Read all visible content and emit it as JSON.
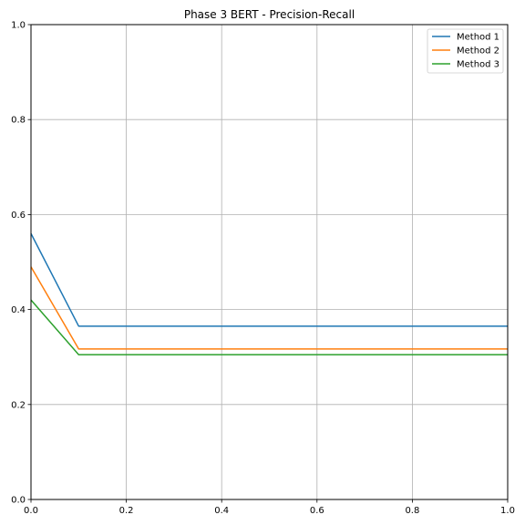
{
  "chart_data": {
    "type": "line",
    "title": "Phase 3 BERT - Precision-Recall",
    "xlabel": "",
    "ylabel": "",
    "xlim": [
      0,
      1
    ],
    "ylim": [
      0,
      1
    ],
    "grid": true,
    "legend_position": "top-right",
    "x_ticks": [
      "0.0",
      "0.2",
      "0.4",
      "0.6",
      "0.8",
      "1.0"
    ],
    "y_ticks": [
      "0.0",
      "0.2",
      "0.4",
      "0.6",
      "0.8",
      "1.0"
    ],
    "series": [
      {
        "name": "Method 1",
        "color": "#1f77b4",
        "x": [
          0.0,
          0.1,
          1.0
        ],
        "y": [
          0.56,
          0.365,
          0.365
        ]
      },
      {
        "name": "Method 2",
        "color": "#ff7f0e",
        "x": [
          0.0,
          0.1,
          1.0
        ],
        "y": [
          0.49,
          0.317,
          0.317
        ]
      },
      {
        "name": "Method 3",
        "color": "#2ca02c",
        "x": [
          0.0,
          0.1,
          1.0
        ],
        "y": [
          0.42,
          0.305,
          0.305
        ]
      }
    ]
  }
}
